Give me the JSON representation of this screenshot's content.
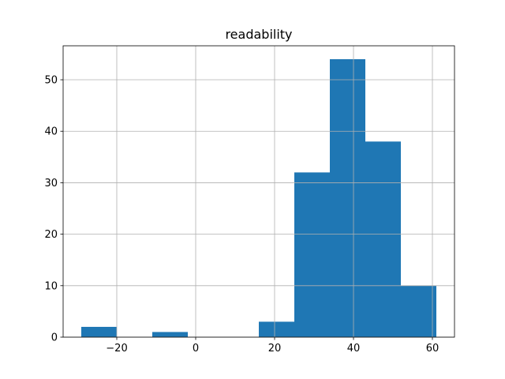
{
  "chart_data": {
    "type": "histogram",
    "title": "readability",
    "bins": [
      -29,
      -20,
      -11,
      -2,
      7,
      16,
      25,
      34,
      43,
      52,
      61
    ],
    "counts": [
      2,
      0,
      1,
      0,
      0,
      3,
      32,
      54,
      38,
      10
    ],
    "color": "#1f77b4",
    "xlim": [
      -33.6,
      65.6
    ],
    "xticks": [
      {
        "value": -20,
        "label": "−20"
      },
      0,
      20,
      40,
      60
    ],
    "ylim": [
      0,
      56.6
    ],
    "yticks": [
      0,
      10,
      20,
      30,
      40,
      50
    ],
    "grid": true
  }
}
